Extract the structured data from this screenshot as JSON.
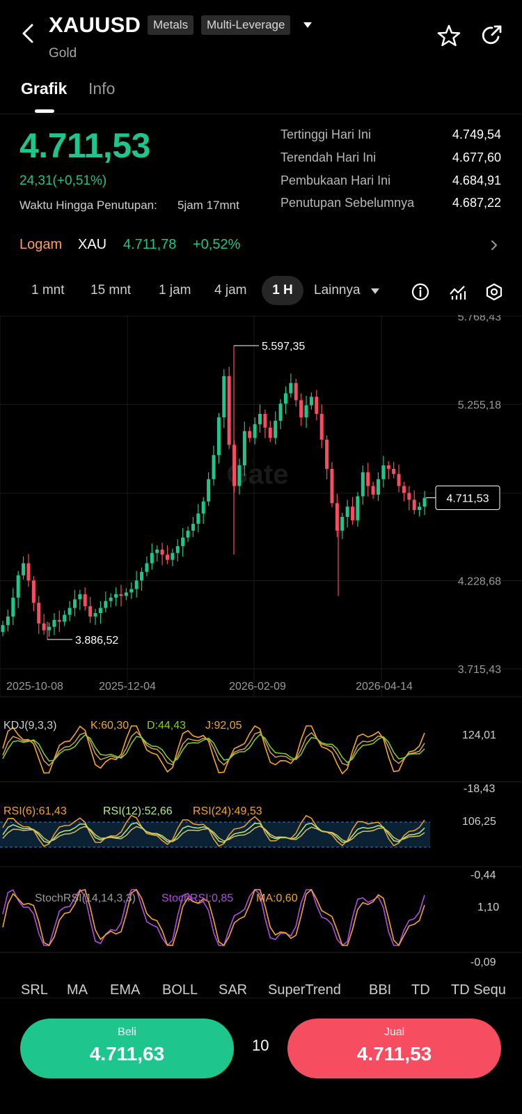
{
  "header": {
    "symbol": "XAUUSD",
    "badges": [
      "Metals",
      "Multi-Leverage"
    ],
    "subtitle": "Gold",
    "icons": [
      "back-arrow-icon",
      "chevron-down-icon",
      "star-icon",
      "share-icon"
    ]
  },
  "tabs": [
    {
      "label": "Grafik",
      "active": true
    },
    {
      "label": "Info",
      "active": false
    }
  ],
  "quote": {
    "price": "4.711,53",
    "change": "24,31(+0,51%)",
    "close_label": "Waktu Hingga Penutupan:",
    "close_value": "5jam 17mnt",
    "stats": [
      {
        "label": "Tertinggi Hari Ini",
        "value": "4.749,54"
      },
      {
        "label": "Terendah Hari Ini",
        "value": "4.677,60"
      },
      {
        "label": "Pembukaan Hari Ini",
        "value": "4.684,91"
      },
      {
        "label": "Penutupan Sebelumnya",
        "value": "4.687,22"
      }
    ],
    "up_color": "#1ec58c",
    "down_color": "#f64d61"
  },
  "related": {
    "category": "Logam",
    "symbol": "XAU",
    "price": "4.711,78",
    "pct": "+0,52%"
  },
  "timeframes": {
    "items": [
      "1 mnt",
      "15 mnt",
      "1 jam",
      "4 jam",
      "1 H",
      "Lainnya"
    ],
    "active": "1 H",
    "tools": [
      "info-icon",
      "indicator-icon",
      "settings-icon"
    ]
  },
  "chart_data": {
    "type": "candlestick",
    "watermark": "Gate",
    "y_ticks": [
      "5.768,43",
      "5.255,18",
      "4.228,68",
      "3.715,43"
    ],
    "y_tick_values": [
      5768.43,
      5255.18,
      4228.68,
      3715.43
    ],
    "ylim": [
      3715.43,
      5768.43
    ],
    "x_ticks": [
      "2025-10-08",
      "2025-12-04",
      "2026-02-09",
      "2026-04-14"
    ],
    "high_label": "5.597,35",
    "high_value": 5597.35,
    "low_label": "3.886,52",
    "low_value": 3886.52,
    "last_price_label": "4.711,53",
    "last_price": 4711.53,
    "closes": [
      3970,
      4020,
      4130,
      4260,
      4330,
      4230,
      4100,
      3980,
      3940,
      3960,
      4000,
      3990,
      4030,
      4070,
      4120,
      4150,
      4080,
      4020,
      4040,
      4070,
      4110,
      4130,
      4150,
      4140,
      4160,
      4180,
      4230,
      4280,
      4330,
      4390,
      4410,
      4380,
      4350,
      4390,
      4430,
      4480,
      4520,
      4560,
      4620,
      4690,
      4820,
      4960,
      5180,
      5420,
      5020,
      4780,
      4900,
      5100,
      5060,
      5140,
      5200,
      5120,
      5060,
      5160,
      5260,
      5320,
      5380,
      5280,
      5180,
      5250,
      5300,
      5200,
      5050,
      4880,
      4680,
      4520,
      4600,
      4660,
      4580,
      4720,
      4860,
      4780,
      4730,
      4820,
      4900,
      4880,
      4850,
      4780,
      4740,
      4700,
      4640,
      4660,
      4711.53
    ]
  },
  "indicators": {
    "kdj": {
      "name": "KDJ(9,3,3)",
      "k": "K:60,30",
      "d": "D:44,43",
      "j": "J:92,05",
      "top": "124,01",
      "bottom": "-18,43"
    },
    "rsi": {
      "r6": "RSI(6):61,43",
      "r12": "RSI(12):52,66",
      "r24": "RSI(24):49,53",
      "top": "106,25",
      "bottom": "-0,44"
    },
    "stochrsi": {
      "name": "StochRSI(14,14,3,3)",
      "value": "StochRSI:0,85",
      "ma": "MA:0,60",
      "top": "1,10",
      "bottom": "-0,09"
    }
  },
  "indicator_tabs": [
    "SRL",
    "MA",
    "EMA",
    "BOLL",
    "SAR",
    "SuperTrend",
    "BBI",
    "TD",
    "TD Sequ"
  ],
  "trade": {
    "buy_label": "Beli",
    "buy_price": "4.711,63",
    "qty": "10",
    "sell_label": "Jual",
    "sell_price": "4.711,53"
  }
}
